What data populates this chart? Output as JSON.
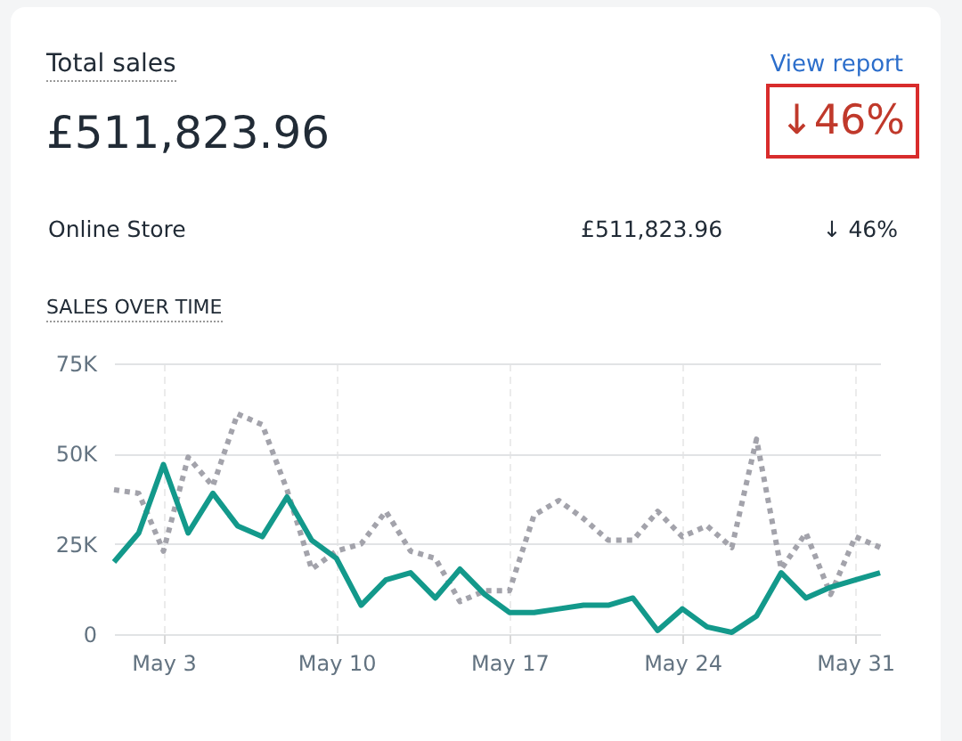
{
  "chart_data": {
    "type": "line",
    "title": "Total sales",
    "subtitle": "£511,823.96",
    "annotations": [
      "View report",
      "↓46%",
      "Online Store",
      "£511,823.96",
      "↓ 46%",
      "SALES OVER TIME"
    ],
    "x": [
      "--05-01",
      "--05-02",
      "--05-03",
      "--05-04",
      "--05-05",
      "--05-06",
      "--05-07",
      "--05-08",
      "--05-09",
      "--05-10",
      "--05-11",
      "--05-12",
      "--05-13",
      "--05-14",
      "--05-15",
      "--05-16",
      "--05-17",
      "--05-18",
      "--05-19",
      "--05-20",
      "--05-21",
      "--05-22",
      "--05-23",
      "--05-24",
      "--05-25",
      "--05-26",
      "--05-27",
      "--05-28",
      "--05-29",
      "--05-30",
      "--05-31",
      "--06-01"
    ],
    "series": [
      {
        "color": "#a3a3ab",
        "line_style": "dotted",
        "values": [
          40000,
          39000,
          23000,
          49000,
          41000,
          61000,
          58000,
          40000,
          18000,
          23000,
          25000,
          34000,
          23000,
          21000,
          9000,
          12000,
          12000,
          33000,
          37000,
          32000,
          26000,
          26000,
          34000,
          27000,
          30000,
          24000,
          54000,
          18000,
          28000,
          11000,
          27000,
          24000
        ]
      },
      {
        "color": "#13998b",
        "line_style": "solid",
        "values": [
          20000,
          28000,
          47000,
          28000,
          39000,
          30000,
          27000,
          38000,
          26000,
          21000,
          8000,
          15000,
          17000,
          10000,
          18000,
          11000,
          6000,
          6000,
          7000,
          8000,
          8000,
          10000,
          1000,
          7000,
          2000,
          500,
          5000,
          17000,
          10000,
          13000,
          15000,
          17000
        ]
      }
    ],
    "xlim": [
      "--05-01",
      "--06-01"
    ],
    "xticks": [
      {
        "value": "--05-03",
        "label": "May 3"
      },
      {
        "value": "--05-10",
        "label": "May 10"
      },
      {
        "value": "--05-17",
        "label": "May 17"
      },
      {
        "value": "--05-24",
        "label": "May 24"
      },
      {
        "value": "--05-31",
        "label": "May 31"
      }
    ],
    "ylim": [
      0,
      75000
    ],
    "yticks": [
      0,
      {
        "value": 25000,
        "label": "25K"
      },
      {
        "value": 50000,
        "label": "50K"
      },
      {
        "value": 75000,
        "label": "75K"
      }
    ],
    "grid": true,
    "marker": "none"
  }
}
